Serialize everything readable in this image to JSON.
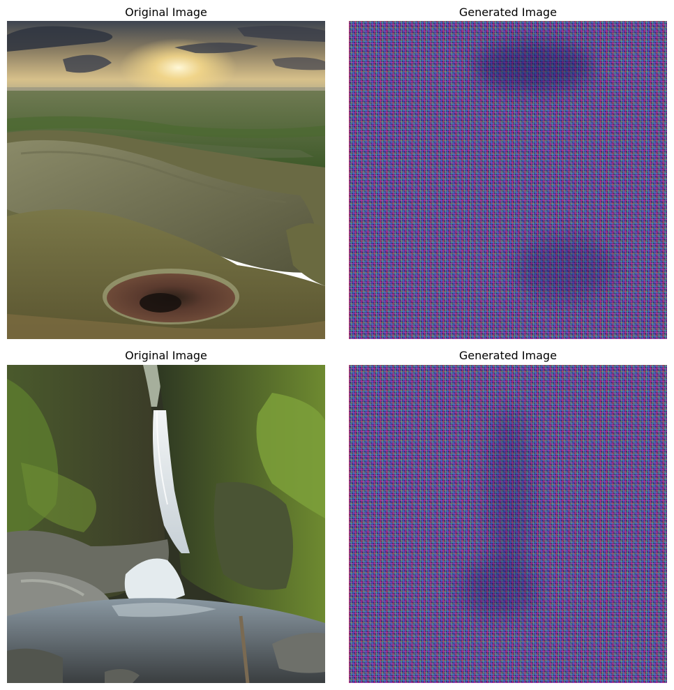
{
  "panels": {
    "top_left": {
      "title": "Original Image",
      "icon": "landscape-sunset-photo"
    },
    "top_right": {
      "title": "Generated Image",
      "icon": "rgb-noise-pattern"
    },
    "bottom_left": {
      "title": "Original Image",
      "icon": "waterfall-photo"
    },
    "bottom_right": {
      "title": "Generated Image",
      "icon": "rgb-noise-pattern"
    }
  },
  "colors": {
    "background": "#ffffff",
    "title_text": "#000000",
    "noise_base": "#5a3f8f"
  }
}
